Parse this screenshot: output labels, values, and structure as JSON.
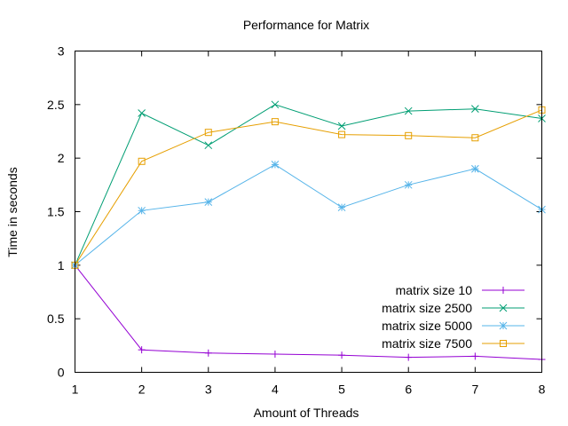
{
  "chart_data": {
    "type": "line",
    "title": "Performance for Matrix",
    "xlabel": "Amount of Threads",
    "ylabel": "Time in seconds",
    "xlim": [
      1,
      8
    ],
    "ylim": [
      0,
      3
    ],
    "x_ticks": [
      "1",
      "2",
      "3",
      "4",
      "5",
      "6",
      "7",
      "8"
    ],
    "y_ticks": [
      "0",
      "0.5",
      "1",
      "1.5",
      "2",
      "2.5",
      "3"
    ],
    "grid": false,
    "legend_position": "bottom-right",
    "x": [
      1,
      2,
      3,
      4,
      5,
      6,
      7,
      8
    ],
    "series": [
      {
        "name": "matrix size 10",
        "color": "#9400d3",
        "marker": "plus",
        "values": [
          1.0,
          0.21,
          0.18,
          0.17,
          0.16,
          0.14,
          0.15,
          0.12
        ]
      },
      {
        "name": "matrix size 2500",
        "color": "#009e73",
        "marker": "cross",
        "values": [
          1.0,
          2.42,
          2.12,
          2.5,
          2.3,
          2.44,
          2.46,
          2.37
        ]
      },
      {
        "name": "matrix size 5000",
        "color": "#56b4e9",
        "marker": "star",
        "values": [
          1.0,
          1.51,
          1.59,
          1.94,
          1.54,
          1.75,
          1.9,
          1.52
        ]
      },
      {
        "name": "matrix size 7500",
        "color": "#e69f00",
        "marker": "square",
        "values": [
          1.0,
          1.97,
          2.24,
          2.34,
          2.22,
          2.21,
          2.19,
          2.45
        ]
      }
    ]
  }
}
